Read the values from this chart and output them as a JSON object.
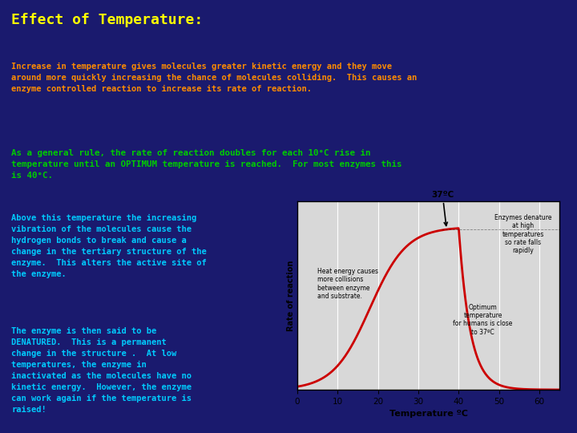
{
  "bg_color": "#1a1a6e",
  "title": "Effect of Temperature:",
  "title_color": "#ffff00",
  "title_fontsize": 13,
  "para1": "Increase in temperature gives molecules greater kinetic energy and they move\naround more quickly increasing the chance of molecules colliding.  This causes an\nenzyme controlled reaction to increase its rate of reaction.",
  "para1_color": "#ff8c00",
  "para1_fontsize": 7.5,
  "para2": "As a general rule, the rate of reaction doubles for each 10°C rise in\ntemperature until an OPTIMUM temperature is reached.  For most enzymes this\nis 40°C.",
  "para2_color": "#00cc00",
  "para2_fontsize": 7.8,
  "para3": "Above this temperature the increasing\nvibration of the molecules cause the\nhydrogen bonds to break and cause a\nchange in the tertiary structure of the\nenzyme.  This alters the active site of\nthe enzyme.",
  "para3_color": "#00ccff",
  "para3_fontsize": 7.5,
  "para4": "The enzyme is then said to be\nDENATURED.  This is a permanent\nchange in the structure .  At low\ntemperatures, the enzyme in\ninactivated as the molecules have no\nkinetic energy.  However, the enzyme\ncan work again if the temperature is\nraised!",
  "para4_color": "#00ccff",
  "para4_fontsize": 7.5,
  "graph_bg": "#d8d8d8",
  "graph_line_color": "#cc0000",
  "graph_xlabel": "Temperature ºC",
  "graph_ylabel": "Rate of reaction",
  "graph_xticks": [
    0,
    10,
    20,
    30,
    40,
    50,
    60
  ],
  "graph_annotation_37": "37ºC",
  "graph_ann1": "Enzymes denature\nat high\ntemperatures\nso rate falls\nrapidly",
  "graph_ann2": "Heat energy causes\nmore collisions\nbetween enzyme\nand substrate.",
  "graph_ann3": "Optimum\ntemperature\nfor humans is close\nto 37ºC"
}
